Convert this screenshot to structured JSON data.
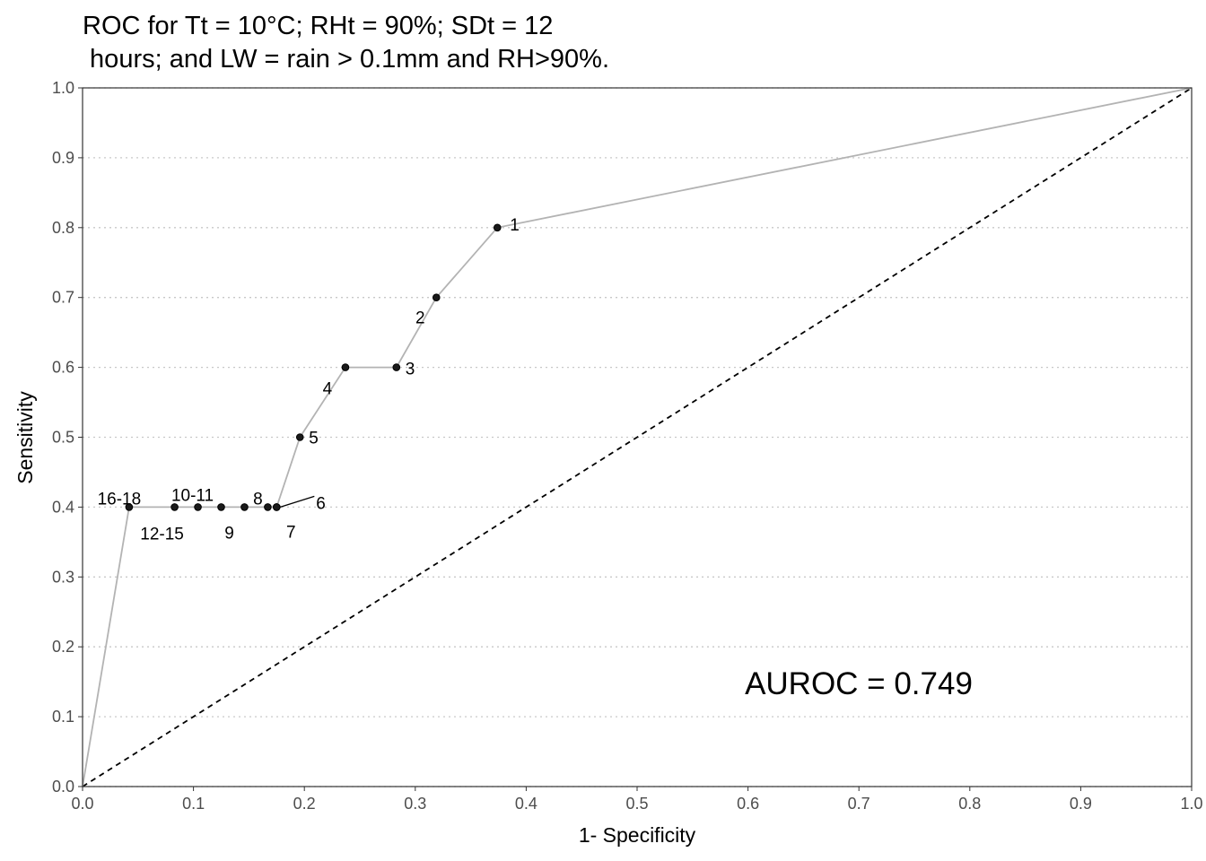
{
  "chart_data": {
    "type": "line",
    "title_line1": "ROC for Tt = 10°C; RHt = 90%; SDt = 12",
    "title_line2": " hours; and LW = rain > 0.1mm and RH>90%.",
    "xlabel": "1- Specificity",
    "ylabel": "Sensitivity",
    "xlim": [
      0,
      1
    ],
    "ylim": [
      0,
      1
    ],
    "x_ticks": [
      "0.0",
      "0.1",
      "0.2",
      "0.3",
      "0.4",
      "0.5",
      "0.6",
      "0.7",
      "0.8",
      "0.9",
      "1.0"
    ],
    "y_ticks": [
      "0.0",
      "0.1",
      "0.2",
      "0.3",
      "0.4",
      "0.5",
      "0.6",
      "0.7",
      "0.8",
      "0.9",
      "1.0"
    ],
    "grid": "horizontal dotted",
    "annotation": "AUROC = 0.749",
    "reference_line": {
      "x": [
        0,
        1
      ],
      "y": [
        0,
        1
      ],
      "style": "dashed"
    },
    "curve": {
      "x": [
        0.0,
        0.042,
        0.083,
        0.104,
        0.125,
        0.146,
        0.167,
        0.175,
        0.196,
        0.237,
        0.283,
        0.319,
        0.374,
        1.0
      ],
      "y": [
        0.0,
        0.4,
        0.4,
        0.4,
        0.4,
        0.4,
        0.4,
        0.4,
        0.5,
        0.6,
        0.6,
        0.7,
        0.8,
        1.0
      ]
    },
    "points": [
      {
        "label": "1",
        "x": 0.374,
        "y": 0.8
      },
      {
        "label": "2",
        "x": 0.319,
        "y": 0.7
      },
      {
        "label": "3",
        "x": 0.283,
        "y": 0.6
      },
      {
        "label": "4",
        "x": 0.237,
        "y": 0.6
      },
      {
        "label": "5",
        "x": 0.196,
        "y": 0.5
      },
      {
        "label": "6",
        "x": 0.175,
        "y": 0.4
      },
      {
        "label": "7",
        "x": 0.175,
        "y": 0.4
      },
      {
        "label": "8",
        "x": 0.167,
        "y": 0.4
      },
      {
        "label": "9",
        "x": 0.125,
        "y": 0.4
      },
      {
        "label": "10-11",
        "x": 0.104,
        "y": 0.4
      },
      {
        "label": "12-15",
        "x": 0.083,
        "y": 0.4
      },
      {
        "label": "16-18",
        "x": 0.042,
        "y": 0.4
      },
      {
        "label": "",
        "x": 0.146,
        "y": 0.4
      }
    ],
    "colors": {
      "curve": "#b3b3b3",
      "point": "#000000",
      "grid": "#c8c8c8",
      "frame": "#333333"
    }
  }
}
